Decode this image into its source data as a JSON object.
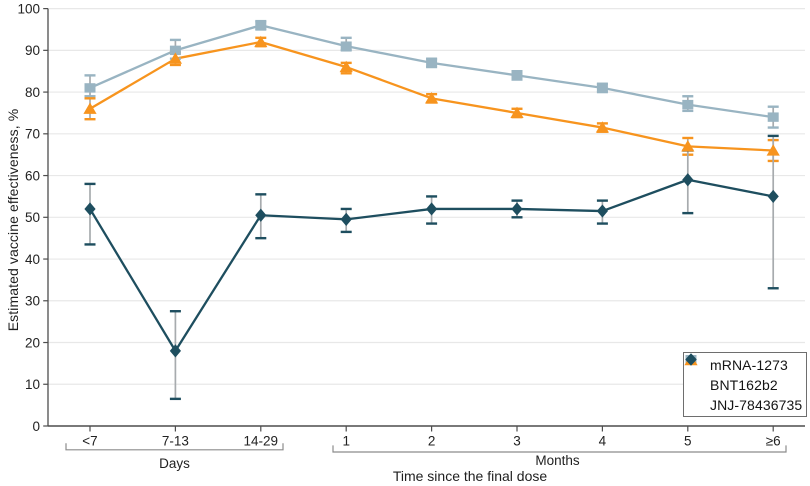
{
  "chart_data": {
    "type": "line",
    "title": "",
    "ylabel": "Estimated vaccine effectiveness, %",
    "xlabel": "Time since the final dose",
    "ylim": [
      0,
      100
    ],
    "yticks": [
      0,
      10,
      20,
      30,
      40,
      50,
      60,
      70,
      80,
      90,
      100
    ],
    "categories": [
      "<7",
      "7-13",
      "14-29",
      "1",
      "2",
      "3",
      "4",
      "5",
      "≥6"
    ],
    "category_groups": [
      {
        "label": "Days",
        "categories": [
          "<7",
          "7-13",
          "14-29"
        ]
      },
      {
        "label": "Months",
        "categories": [
          "1",
          "2",
          "3",
          "4",
          "5",
          "≥6"
        ]
      }
    ],
    "grid": true,
    "legend_position": "bottom-right",
    "series": [
      {
        "name": "mRNA-1273",
        "marker": "square",
        "color": "#99B4C2",
        "values": [
          81,
          90,
          96,
          91,
          87,
          84,
          81,
          77,
          74
        ],
        "ci_low": [
          79,
          88,
          95,
          90,
          86,
          83,
          80,
          75.5,
          71.5
        ],
        "ci_high": [
          84,
          92.5,
          97,
          93,
          88,
          85,
          82,
          79,
          76.5
        ]
      },
      {
        "name": "BNT162b2",
        "marker": "triangle",
        "color": "#F7941E",
        "values": [
          76,
          88,
          92,
          86,
          78.5,
          75,
          71.5,
          67,
          66
        ],
        "ci_low": [
          73.5,
          86.5,
          91,
          84.5,
          77.5,
          74,
          70.5,
          65,
          63.5
        ],
        "ci_high": [
          78.5,
          89.5,
          93,
          87,
          79.5,
          76,
          72.5,
          69,
          68.5
        ]
      },
      {
        "name": "JNJ-78436735",
        "marker": "diamond",
        "color": "#1E4E5F",
        "values": [
          52,
          18,
          50.5,
          49.5,
          52,
          52,
          51.5,
          59,
          55
        ],
        "ci_low": [
          43.5,
          6.5,
          45,
          46.5,
          48.5,
          50,
          48.5,
          51,
          33
        ],
        "ci_high": [
          58,
          27.5,
          55.5,
          52,
          55,
          54,
          54,
          66,
          69.5
        ]
      }
    ],
    "style": {
      "background": "#FFFFFF",
      "grid_color": "#E8E8E8",
      "axis_color": "#4D4D4D",
      "bracket_color": "#8C8C8C",
      "tick_text_color": "#222222",
      "error_stem_color": "#A7ABAE",
      "legend_border_color": "#6E6E6E"
    }
  }
}
